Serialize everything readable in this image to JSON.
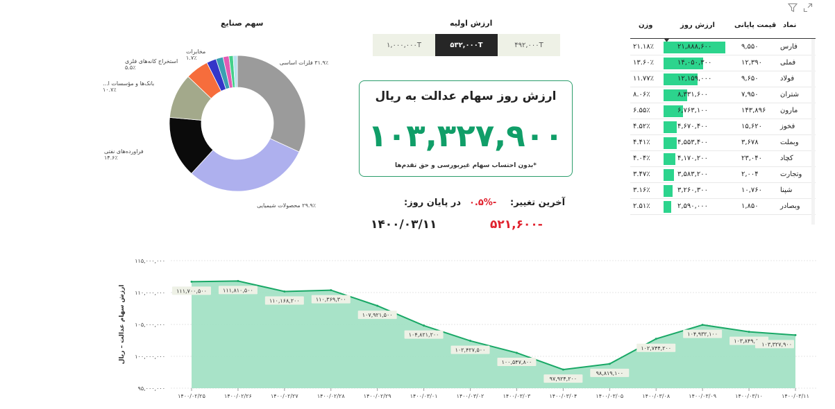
{
  "toolbar": {
    "filter_icon": "filter-icon",
    "expand_icon": "expand-icon"
  },
  "table": {
    "headers": {
      "symbol": "نماد",
      "final_price": "قیمت پایانی",
      "day_value": "ارزش روز",
      "weight": "وزن"
    },
    "rows": [
      {
        "symbol": "فارس",
        "final_price": "۹,۵۵۰",
        "day_value": "۲۱,۸۸۸,۶۰۰",
        "weight": "۲۱.۱۸٪",
        "bar": 1.0
      },
      {
        "symbol": "فملی",
        "final_price": "۱۲,۳۹۰",
        "day_value": "۱۴,۰۵۰,۳۰۰",
        "weight": "۱۳.۶۰٪",
        "bar": 0.642
      },
      {
        "symbol": "فولاد",
        "final_price": "۹,۶۵۰",
        "day_value": "۱۲,۱۵۹,۰۰۰",
        "weight": "۱۱.۷۷٪",
        "bar": 0.556
      },
      {
        "symbol": "شتران",
        "final_price": "۷,۹۵۰",
        "day_value": "۸,۳۳۱,۶۰۰",
        "weight": "۸.۰۶٪",
        "bar": 0.381
      },
      {
        "symbol": "مارون",
        "final_price": "۱۴۳,۸۹۶",
        "day_value": "۶,۷۶۳,۱۰۰",
        "weight": "۶.۵۵٪",
        "bar": 0.309
      },
      {
        "symbol": "فخوز",
        "final_price": "۱۵,۶۲۰",
        "day_value": "۴,۶۷۰,۴۰۰",
        "weight": "۴.۵۲٪",
        "bar": 0.213
      },
      {
        "symbol": "وبملت",
        "final_price": "۳,۶۷۸",
        "day_value": "۴,۵۵۳,۴۰۰",
        "weight": "۴.۴۱٪",
        "bar": 0.208
      },
      {
        "symbol": "کچاد",
        "final_price": "۲۳,۰۴۰",
        "day_value": "۴,۱۷۰,۲۰۰",
        "weight": "۴.۰۴٪",
        "bar": 0.191
      },
      {
        "symbol": "وتجارت",
        "final_price": "۲,۰۰۴",
        "day_value": "۳,۵۸۳,۲۰۰",
        "weight": "۳.۴۷٪",
        "bar": 0.164
      },
      {
        "symbol": "شپنا",
        "final_price": "۱۰,۷۶۰",
        "day_value": "۳,۲۶۰,۳۰۰",
        "weight": "۳.۱۶٪",
        "bar": 0.149
      },
      {
        "symbol": "وبصادر",
        "final_price": "۱,۸۵۰",
        "day_value": "۲,۵۹۰,۰۰۰",
        "weight": "۲.۵۱٪",
        "bar": 0.118
      }
    ]
  },
  "donut": {
    "title": "سهم صنایع",
    "slices": [
      {
        "label": "فلزات اساسی",
        "pct": "۳۱.۹٪",
        "value": 31.9,
        "color": "#9b9b9b"
      },
      {
        "label": "محصولات شیمیایی",
        "pct": "۲۹.۹٪",
        "value": 29.9,
        "color": "#aeb0ee"
      },
      {
        "label": "فراورده‌های نفتی",
        "pct": "۱۴.۶٪",
        "value": 14.6,
        "color": "#0b0b0b"
      },
      {
        "label": "بانک‌ها و مؤسسات ا...",
        "pct": "۱۰.۷٪",
        "value": 10.7,
        "color": "#a3a98b"
      },
      {
        "label": "استخراج کانه‌های فلزی",
        "pct": "۵.۵٪",
        "value": 5.5,
        "color": "#f66d3c"
      },
      {
        "label": "",
        "pct": "",
        "value": 2.3,
        "color": "#3436c8"
      },
      {
        "label": "مخابرات",
        "pct": "۱.۷٪",
        "value": 1.7,
        "color": "#3aa0b2"
      },
      {
        "label": "",
        "pct": "",
        "value": 1.4,
        "color": "#e25bb4"
      },
      {
        "label": "",
        "pct": "",
        "value": 1.0,
        "color": "#44d08a"
      },
      {
        "label": "",
        "pct": "",
        "value": 1.0,
        "color": "#b9e0ef"
      }
    ]
  },
  "initial_value": {
    "title": "ارزش اولیه",
    "options": [
      "۱,۰۰۰,۰۰۰T",
      "۵۳۲,۰۰۰T",
      "۴۹۲,۰۰۰T"
    ],
    "selected": 1
  },
  "card": {
    "title": "ارزش روز سهام عدالت به ریال",
    "value": "۱۰۳,۳۲۷,۹۰۰",
    "note": "*بدون احتساب سهام غیربورسی و حق تقدم‌ها"
  },
  "status": {
    "last_change_label": "آخرین تغییر:",
    "last_change_pct": "۰.۵%-",
    "last_change_value": "۵۲۱,۶۰۰-",
    "end_of_day_label": "در پایان روز:",
    "date": "۱۴۰۰/۰۳/۱۱"
  },
  "colors": {
    "accent": "#109e68",
    "bar": "#2cd48d",
    "negative": "#e0212d",
    "area_fill": "#9fe0c2",
    "area_line": "#19a866"
  },
  "chart_data": {
    "type": "area",
    "ylabel": "ارزش سهام عدالت – ریال",
    "y_ticks": [
      "۹۵,۰۰۰,۰۰۰",
      "۱۰۰,۰۰۰,۰۰۰",
      "۱۰۵,۰۰۰,۰۰۰",
      "۱۱۰,۰۰۰,۰۰۰",
      "۱۱۵,۰۰۰,۰۰۰"
    ],
    "y_tick_values": [
      95000000,
      100000000,
      105000000,
      110000000,
      115000000
    ],
    "ylim": [
      95000000,
      115000000
    ],
    "categories": [
      "۱۴۰۰/۰۲/۲۵",
      "۱۴۰۰/۰۲/۲۶",
      "۱۴۰۰/۰۲/۲۷",
      "۱۴۰۰/۰۲/۲۸",
      "۱۴۰۰/۰۲/۲۹",
      "۱۴۰۰/۰۳/۰۱",
      "۱۴۰۰/۰۳/۰۲",
      "۱۴۰۰/۰۳/۰۳",
      "۱۴۰۰/۰۳/۰۴",
      "۱۴۰۰/۰۳/۰۵",
      "۱۴۰۰/۰۳/۰۸",
      "۱۴۰۰/۰۳/۰۹",
      "۱۴۰۰/۰۳/۱۰",
      "۱۴۰۰/۰۳/۱۱"
    ],
    "values": [
      111700500,
      111810500,
      110168200,
      110369300,
      107921500,
      104821200,
      102427500,
      100547800,
      97924200,
      98819100,
      102744200,
      104932100,
      103849600,
      103327900
    ],
    "data_labels": [
      "۱۱۱,۷۰۰,۵۰۰",
      "۱۱۱,۸۱۰,۵۰۰",
      "۱۱۰,۱۶۸,۲۰۰",
      "۱۱۰,۳۶۹,۳۰۰",
      "۱۰۷,۹۲۱,۵۰۰",
      "۱۰۴,۸۲۱,۲۰۰",
      "۱۰۲,۴۲۷,۵۰۰",
      "۱۰۰,۵۴۷,۸۰۰",
      "۹۷,۹۲۴,۲۰۰",
      "۹۸,۸۱۹,۱۰۰",
      "۱۰۲,۷۴۴,۲۰۰",
      "۱۰۴,۹۳۲,۱۰۰",
      "۱۰۳,۸۴۹,۶۰۰",
      "۱۰۳,۳۲۷,۹۰۰"
    ],
    "grid": true
  }
}
